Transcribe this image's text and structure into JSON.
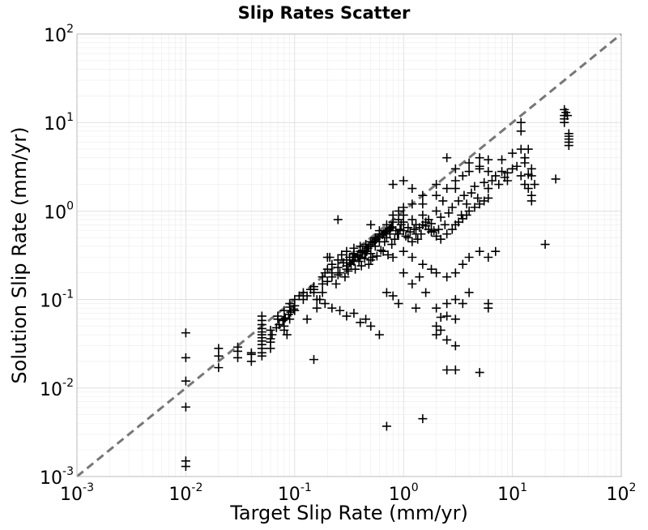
{
  "chart_data": {
    "type": "scatter",
    "title": "Slip Rates Scatter",
    "xlabel": "Target Slip Rate (mm/yr)",
    "ylabel": "Solution Slip Rate (mm/yr)",
    "xscale": "log",
    "yscale": "log",
    "xlim": [
      0.001,
      100
    ],
    "ylim": [
      0.001,
      100
    ],
    "grid": true,
    "marker": "+",
    "marker_color": "#000000",
    "reference_line": {
      "style": "dashed",
      "color": "#777777",
      "x": [
        0.001,
        100
      ],
      "y": [
        0.001,
        100
      ]
    },
    "x_ticks": [
      {
        "base": "10",
        "exp": "-3",
        "value": 0.001
      },
      {
        "base": "10",
        "exp": "-2",
        "value": 0.01
      },
      {
        "base": "10",
        "exp": "-1",
        "value": 0.1
      },
      {
        "base": "10",
        "exp": "0",
        "value": 1
      },
      {
        "base": "10",
        "exp": "1",
        "value": 10
      },
      {
        "base": "10",
        "exp": "2",
        "value": 100
      }
    ],
    "y_ticks": [
      {
        "base": "10",
        "exp": "-3",
        "value": 0.001
      },
      {
        "base": "10",
        "exp": "-2",
        "value": 0.01
      },
      {
        "base": "10",
        "exp": "-1",
        "value": 0.1
      },
      {
        "base": "10",
        "exp": "0",
        "value": 1
      },
      {
        "base": "10",
        "exp": "1",
        "value": 10
      },
      {
        "base": "10",
        "exp": "2",
        "value": 100
      }
    ],
    "points": [
      [
        0.01,
        0.042
      ],
      [
        0.01,
        0.022
      ],
      [
        0.01,
        0.012
      ],
      [
        0.01,
        0.0061
      ],
      [
        0.01,
        0.0015
      ],
      [
        0.01,
        0.0013
      ],
      [
        0.02,
        0.028
      ],
      [
        0.02,
        0.023
      ],
      [
        0.02,
        0.017
      ],
      [
        0.03,
        0.029
      ],
      [
        0.03,
        0.026
      ],
      [
        0.03,
        0.022
      ],
      [
        0.04,
        0.025
      ],
      [
        0.04,
        0.024
      ],
      [
        0.05,
        0.065
      ],
      [
        0.05,
        0.058
      ],
      [
        0.05,
        0.052
      ],
      [
        0.05,
        0.047
      ],
      [
        0.05,
        0.043
      ],
      [
        0.05,
        0.04
      ],
      [
        0.05,
        0.037
      ],
      [
        0.05,
        0.034
      ],
      [
        0.05,
        0.031
      ],
      [
        0.05,
        0.028
      ],
      [
        0.05,
        0.025
      ],
      [
        0.05,
        0.023
      ],
      [
        0.06,
        0.033
      ],
      [
        0.06,
        0.028
      ],
      [
        0.07,
        0.065
      ],
      [
        0.07,
        0.06
      ],
      [
        0.08,
        0.075
      ],
      [
        0.08,
        0.06
      ],
      [
        0.08,
        0.05
      ],
      [
        0.08,
        0.045
      ],
      [
        0.085,
        0.04
      ],
      [
        0.09,
        0.09
      ],
      [
        0.09,
        0.082
      ],
      [
        0.1,
        0.1
      ],
      [
        0.1,
        0.085
      ],
      [
        0.1,
        0.075
      ],
      [
        0.12,
        0.12
      ],
      [
        0.12,
        0.1
      ],
      [
        0.13,
        0.11
      ],
      [
        0.15,
        0.14
      ],
      [
        0.15,
        0.13
      ],
      [
        0.15,
        0.12
      ],
      [
        0.16,
        0.1
      ],
      [
        0.18,
        0.18
      ],
      [
        0.18,
        0.15
      ],
      [
        0.18,
        0.12
      ],
      [
        0.2,
        0.3
      ],
      [
        0.2,
        0.22
      ],
      [
        0.2,
        0.16
      ],
      [
        0.22,
        0.25
      ],
      [
        0.22,
        0.2
      ],
      [
        0.22,
        0.18
      ],
      [
        0.25,
        0.28
      ],
      [
        0.25,
        0.23
      ],
      [
        0.25,
        0.19
      ],
      [
        0.27,
        0.32
      ],
      [
        0.28,
        0.26
      ],
      [
        0.3,
        0.35
      ],
      [
        0.3,
        0.28
      ],
      [
        0.3,
        0.22
      ],
      [
        0.32,
        0.3
      ],
      [
        0.33,
        0.25
      ],
      [
        0.35,
        0.38
      ],
      [
        0.35,
        0.33
      ],
      [
        0.35,
        0.27
      ],
      [
        0.38,
        0.31
      ],
      [
        0.4,
        0.4
      ],
      [
        0.4,
        0.35
      ],
      [
        0.4,
        0.3
      ],
      [
        0.42,
        0.36
      ],
      [
        0.45,
        0.42
      ],
      [
        0.45,
        0.33
      ],
      [
        0.47,
        0.38
      ],
      [
        0.5,
        0.45
      ],
      [
        0.5,
        0.4
      ],
      [
        0.5,
        0.33
      ],
      [
        0.5,
        0.28
      ],
      [
        0.55,
        0.5
      ],
      [
        0.55,
        0.4
      ],
      [
        0.6,
        0.6
      ],
      [
        0.6,
        0.55
      ],
      [
        0.6,
        0.45
      ],
      [
        0.65,
        0.35
      ],
      [
        0.7,
        0.7
      ],
      [
        0.7,
        0.5
      ],
      [
        0.75,
        0.55
      ],
      [
        0.8,
        0.9
      ],
      [
        0.8,
        0.75
      ],
      [
        0.85,
        0.6
      ],
      [
        0.9,
        1.0
      ],
      [
        0.9,
        0.8
      ],
      [
        0.95,
        0.7
      ],
      [
        1.0,
        1.1
      ],
      [
        1.0,
        0.9
      ],
      [
        1.0,
        0.75
      ],
      [
        1.1,
        0.65
      ],
      [
        1.2,
        1.2
      ],
      [
        1.2,
        0.8
      ],
      [
        1.3,
        0.7
      ],
      [
        1.5,
        1.5
      ],
      [
        1.5,
        1.2
      ],
      [
        1.5,
        0.9
      ],
      [
        1.7,
        0.8
      ],
      [
        2.0,
        2.0
      ],
      [
        2.0,
        1.5
      ],
      [
        2.0,
        1.0
      ],
      [
        2.3,
        1.3
      ],
      [
        2.5,
        1.8
      ],
      [
        3.0,
        3.0
      ],
      [
        3.0,
        2.2
      ],
      [
        3.5,
        2.5
      ],
      [
        4.0,
        2.8
      ],
      [
        5.0,
        4.0
      ],
      [
        5.0,
        3.0
      ],
      [
        6.0,
        2.8
      ],
      [
        8.0,
        3.8
      ],
      [
        10.0,
        4.5
      ],
      [
        12.0,
        5.0
      ],
      [
        0.04,
        0.02
      ],
      [
        0.06,
        0.045
      ],
      [
        0.09,
        0.06
      ],
      [
        0.11,
        0.11
      ],
      [
        0.14,
        0.13
      ],
      [
        0.17,
        0.1
      ],
      [
        0.19,
        0.2
      ],
      [
        0.21,
        0.3
      ],
      [
        0.24,
        0.15
      ],
      [
        0.26,
        0.2
      ],
      [
        0.29,
        0.18
      ],
      [
        0.31,
        0.21
      ],
      [
        0.34,
        0.3
      ],
      [
        0.36,
        0.22
      ],
      [
        0.39,
        0.27
      ],
      [
        0.41,
        0.24
      ],
      [
        0.44,
        0.29
      ],
      [
        0.46,
        0.35
      ],
      [
        0.48,
        0.25
      ],
      [
        0.52,
        0.3
      ],
      [
        0.57,
        0.31
      ],
      [
        0.62,
        0.36
      ],
      [
        0.67,
        0.45
      ],
      [
        0.72,
        0.32
      ],
      [
        0.78,
        0.42
      ],
      [
        0.83,
        0.48
      ],
      [
        0.88,
        0.55
      ],
      [
        0.93,
        0.62
      ],
      [
        1.05,
        0.52
      ],
      [
        1.15,
        0.58
      ],
      [
        1.25,
        0.62
      ],
      [
        1.35,
        0.48
      ],
      [
        1.45,
        0.55
      ],
      [
        1.6,
        0.68
      ],
      [
        1.8,
        0.72
      ],
      [
        1.9,
        0.6
      ],
      [
        2.1,
        0.62
      ],
      [
        2.2,
        0.85
      ],
      [
        2.4,
        0.7
      ],
      [
        2.6,
        0.95
      ],
      [
        2.8,
        1.1
      ],
      [
        3.2,
        1.3
      ],
      [
        3.4,
        0.9
      ],
      [
        3.6,
        1.5
      ],
      [
        3.8,
        1.2
      ],
      [
        4.2,
        1.6
      ],
      [
        4.5,
        1.9
      ],
      [
        4.8,
        1.4
      ],
      [
        5.5,
        2.1
      ],
      [
        6.0,
        1.8
      ],
      [
        6.5,
        2.2
      ],
      [
        7.0,
        2.5
      ],
      [
        7.5,
        2.0
      ],
      [
        8.5,
        2.4
      ],
      [
        9.0,
        2.7
      ],
      [
        11.0,
        3.2
      ],
      [
        13.0,
        3.5
      ],
      [
        14.0,
        2.6
      ],
      [
        15.0,
        1.5
      ],
      [
        16.0,
        2.0
      ],
      [
        0.9,
        0.55
      ],
      [
        1.0,
        0.6
      ],
      [
        1.1,
        0.5
      ],
      [
        1.2,
        0.45
      ],
      [
        1.3,
        0.55
      ],
      [
        1.4,
        0.65
      ],
      [
        1.5,
        0.7
      ],
      [
        1.6,
        0.75
      ],
      [
        1.7,
        0.62
      ],
      [
        1.8,
        0.58
      ],
      [
        2.0,
        0.52
      ],
      [
        2.2,
        0.48
      ],
      [
        2.5,
        0.55
      ],
      [
        2.8,
        0.62
      ],
      [
        3.0,
        0.7
      ],
      [
        3.2,
        0.75
      ],
      [
        3.5,
        0.82
      ],
      [
        3.8,
        0.9
      ],
      [
        4.0,
        1.0
      ],
      [
        4.5,
        1.1
      ],
      [
        5.0,
        1.2
      ],
      [
        5.5,
        1.3
      ],
      [
        6.0,
        1.4
      ],
      [
        0.3,
        0.24
      ],
      [
        0.32,
        0.26
      ],
      [
        0.34,
        0.28
      ],
      [
        0.36,
        0.3
      ],
      [
        0.38,
        0.32
      ],
      [
        0.42,
        0.34
      ],
      [
        0.44,
        0.36
      ],
      [
        0.46,
        0.38
      ],
      [
        0.48,
        0.4
      ],
      [
        0.5,
        0.42
      ],
      [
        0.52,
        0.44
      ],
      [
        0.54,
        0.46
      ],
      [
        0.56,
        0.48
      ],
      [
        0.58,
        0.5
      ],
      [
        0.6,
        0.52
      ],
      [
        0.64,
        0.54
      ],
      [
        0.66,
        0.56
      ],
      [
        0.68,
        0.58
      ],
      [
        0.7,
        0.6
      ],
      [
        0.74,
        0.62
      ],
      [
        0.76,
        0.64
      ],
      [
        0.78,
        0.66
      ],
      [
        0.06,
        0.036
      ],
      [
        0.062,
        0.04
      ],
      [
        0.068,
        0.048
      ],
      [
        0.072,
        0.052
      ],
      [
        0.078,
        0.058
      ],
      [
        0.082,
        0.062
      ],
      [
        0.088,
        0.068
      ],
      [
        0.092,
        0.072
      ],
      [
        0.098,
        0.078
      ],
      [
        0.13,
        0.06
      ],
      [
        0.16,
        0.08
      ],
      [
        0.19,
        0.09
      ],
      [
        0.22,
        0.08
      ],
      [
        0.26,
        0.075
      ],
      [
        0.3,
        0.065
      ],
      [
        0.35,
        0.07
      ],
      [
        0.4,
        0.055
      ],
      [
        0.45,
        0.06
      ],
      [
        0.5,
        0.05
      ],
      [
        0.6,
        0.04
      ],
      [
        0.7,
        0.12
      ],
      [
        0.8,
        0.11
      ],
      [
        0.9,
        0.09
      ],
      [
        1.0,
        0.2
      ],
      [
        1.2,
        0.15
      ],
      [
        1.4,
        0.18
      ],
      [
        1.6,
        0.12
      ],
      [
        2.0,
        0.08
      ],
      [
        2.2,
        0.063
      ],
      [
        2.5,
        0.09
      ],
      [
        3.0,
        0.1
      ],
      [
        3.5,
        0.09
      ],
      [
        4.0,
        0.12
      ],
      [
        0.15,
        0.021
      ],
      [
        0.7,
        0.0037
      ],
      [
        1.5,
        0.0045
      ],
      [
        2.5,
        0.016
      ],
      [
        3.0,
        0.016
      ],
      [
        5.0,
        0.015
      ],
      [
        2.0,
        0.04
      ],
      [
        2.5,
        0.035
      ],
      [
        3.0,
        0.03
      ],
      [
        2.0,
        0.05
      ],
      [
        2.2,
        0.045
      ],
      [
        0.8,
        0.3
      ],
      [
        1.0,
        0.35
      ],
      [
        1.2,
        0.3
      ],
      [
        1.5,
        0.25
      ],
      [
        1.8,
        0.22
      ],
      [
        2.0,
        0.2
      ],
      [
        2.5,
        0.18
      ],
      [
        3.0,
        0.2
      ],
      [
        3.5,
        0.25
      ],
      [
        4.0,
        0.3
      ],
      [
        5.0,
        0.35
      ],
      [
        6.0,
        0.3
      ],
      [
        7.0,
        0.35
      ],
      [
        6.0,
        0.09
      ],
      [
        6.0,
        0.08
      ],
      [
        3.0,
        0.06
      ],
      [
        2.5,
        0.065
      ],
      [
        1.3,
        0.08
      ],
      [
        0.25,
        0.8
      ],
      [
        0.5,
        0.7
      ],
      [
        0.8,
        2.0
      ],
      [
        1.0,
        2.2
      ],
      [
        1.2,
        1.8
      ],
      [
        2.5,
        4.0
      ],
      [
        3.0,
        1.8
      ],
      [
        4.0,
        3.5
      ],
      [
        5.0,
        3.2
      ],
      [
        6.0,
        3.8
      ],
      [
        8.0,
        2.8
      ],
      [
        9.0,
        2.2
      ],
      [
        10.0,
        3.0
      ],
      [
        12.0,
        2.5
      ],
      [
        13.0,
        2.0
      ],
      [
        14.0,
        1.8
      ],
      [
        15.0,
        1.3
      ],
      [
        20.0,
        0.42
      ],
      [
        25.0,
        2.3
      ],
      [
        12.0,
        10.0
      ],
      [
        12.0,
        8.0
      ],
      [
        13.0,
        4.0
      ],
      [
        14.0,
        5.0
      ],
      [
        15.0,
        3.0
      ],
      [
        15.0,
        2.5
      ],
      [
        30.0,
        14.0
      ],
      [
        30.0,
        12.0
      ],
      [
        30.0,
        11.0
      ],
      [
        30.0,
        10.0
      ],
      [
        31.0,
        13.0
      ],
      [
        32.0,
        12.0
      ],
      [
        33.0,
        7.0
      ],
      [
        33.0,
        6.5
      ],
      [
        33.0,
        6.0
      ],
      [
        33.0,
        5.5
      ],
      [
        33.0,
        7.5
      ]
    ]
  }
}
